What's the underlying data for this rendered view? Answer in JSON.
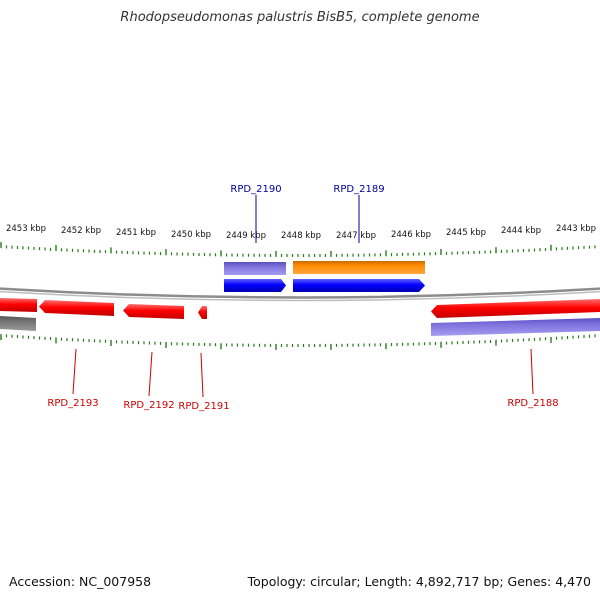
{
  "title": "Rhodopseudomonas palustris BisB5, complete genome",
  "footer": {
    "accession": "Accession: NC_007958",
    "summary": "Topology: circular; Length: 4,892,717 bp; Genes: 4,470"
  },
  "colors": {
    "label_blue": "#000099",
    "label_red": "#cc0000",
    "tick": "#2a7a1e",
    "backbone": "#888888",
    "cds_red": "#ff0000",
    "cds_blue": "#0000ff",
    "cds_orange": "#ff8c00",
    "rna_purple": "#7f71dd",
    "gray": "#6e6e6e"
  },
  "scale_labels": [
    "2453 kbp",
    "2452 kbp",
    "2451 kbp",
    "2450 kbp",
    "2449 kbp",
    "2448 kbp",
    "2447 kbp",
    "2446 kbp",
    "2445 kbp",
    "2444 kbp",
    "2443 kbp"
  ],
  "gene_labels": [
    {
      "id": "RPD_2190",
      "strand": "forward"
    },
    {
      "id": "RPD_2189",
      "strand": "forward"
    },
    {
      "id": "RPD_2193",
      "strand": "reverse"
    },
    {
      "id": "RPD_2192",
      "strand": "reverse"
    },
    {
      "id": "RPD_2191",
      "strand": "reverse"
    },
    {
      "id": "RPD_2188",
      "strand": "reverse"
    }
  ]
}
